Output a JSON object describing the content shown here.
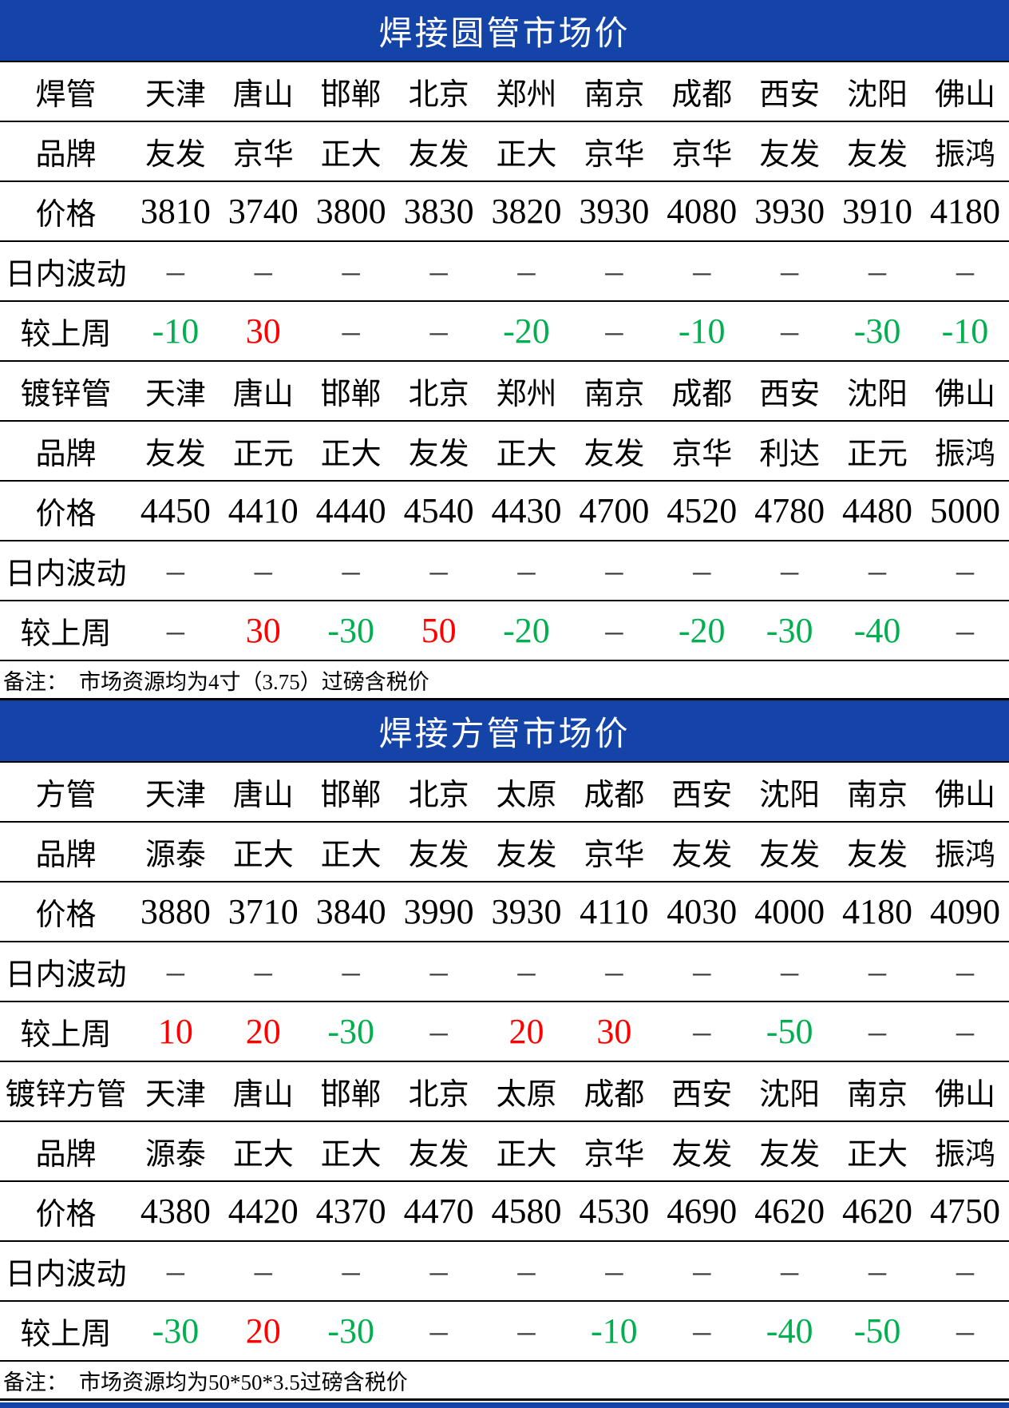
{
  "colors": {
    "up": "#ff0000",
    "down": "#00b050",
    "dash": "#3f3f3f",
    "banner_bg": "#1444a8",
    "banner_text": "#ffffff"
  },
  "sections": [
    {
      "title": "焊接圆管市场价",
      "note": {
        "label": "备注：",
        "text": "市场资源均为4寸（3.75）过磅含税价"
      },
      "rows": [
        {
          "label": "焊管",
          "cells": [
            {
              "v": "天津"
            },
            {
              "v": "唐山"
            },
            {
              "v": "邯郸"
            },
            {
              "v": "北京"
            },
            {
              "v": "郑州"
            },
            {
              "v": "南京"
            },
            {
              "v": "成都"
            },
            {
              "v": "西安"
            },
            {
              "v": "沈阳"
            },
            {
              "v": "佛山"
            }
          ]
        },
        {
          "label": "品牌",
          "cells": [
            {
              "v": "友发"
            },
            {
              "v": "京华"
            },
            {
              "v": "正大"
            },
            {
              "v": "友发"
            },
            {
              "v": "正大"
            },
            {
              "v": "京华"
            },
            {
              "v": "京华"
            },
            {
              "v": "友发"
            },
            {
              "v": "友发"
            },
            {
              "v": "振鸿"
            }
          ]
        },
        {
          "label": "价格",
          "cells": [
            {
              "v": "3810"
            },
            {
              "v": "3740"
            },
            {
              "v": "3800"
            },
            {
              "v": "3830"
            },
            {
              "v": "3820"
            },
            {
              "v": "3930"
            },
            {
              "v": "4080"
            },
            {
              "v": "3930"
            },
            {
              "v": "3910"
            },
            {
              "v": "4180"
            }
          ]
        },
        {
          "label": "日内波动",
          "cells": [
            {
              "v": "–",
              "c": "dash"
            },
            {
              "v": "–",
              "c": "dash"
            },
            {
              "v": "–",
              "c": "dash"
            },
            {
              "v": "–",
              "c": "dash"
            },
            {
              "v": "–",
              "c": "dash"
            },
            {
              "v": "–",
              "c": "dash"
            },
            {
              "v": "–",
              "c": "dash"
            },
            {
              "v": "–",
              "c": "dash"
            },
            {
              "v": "–",
              "c": "dash"
            },
            {
              "v": "–",
              "c": "dash"
            }
          ]
        },
        {
          "label": "较上周",
          "cells": [
            {
              "v": "-10",
              "c": "down"
            },
            {
              "v": "30",
              "c": "up"
            },
            {
              "v": "–",
              "c": "dash"
            },
            {
              "v": "–",
              "c": "dash"
            },
            {
              "v": "-20",
              "c": "down"
            },
            {
              "v": "–",
              "c": "dash"
            },
            {
              "v": "-10",
              "c": "down"
            },
            {
              "v": "–",
              "c": "dash"
            },
            {
              "v": "-30",
              "c": "down"
            },
            {
              "v": "-10",
              "c": "down"
            }
          ]
        },
        {
          "label": "镀锌管",
          "cells": [
            {
              "v": "天津"
            },
            {
              "v": "唐山"
            },
            {
              "v": "邯郸"
            },
            {
              "v": "北京"
            },
            {
              "v": "郑州"
            },
            {
              "v": "南京"
            },
            {
              "v": "成都"
            },
            {
              "v": "西安"
            },
            {
              "v": "沈阳"
            },
            {
              "v": "佛山"
            }
          ]
        },
        {
          "label": "品牌",
          "cells": [
            {
              "v": "友发"
            },
            {
              "v": "正元"
            },
            {
              "v": "正大"
            },
            {
              "v": "友发"
            },
            {
              "v": "正大"
            },
            {
              "v": "友发"
            },
            {
              "v": "京华"
            },
            {
              "v": "利达"
            },
            {
              "v": "正元"
            },
            {
              "v": "振鸿"
            }
          ]
        },
        {
          "label": "价格",
          "cells": [
            {
              "v": "4450"
            },
            {
              "v": "4410"
            },
            {
              "v": "4440"
            },
            {
              "v": "4540"
            },
            {
              "v": "4430"
            },
            {
              "v": "4700"
            },
            {
              "v": "4520"
            },
            {
              "v": "4780"
            },
            {
              "v": "4480"
            },
            {
              "v": "5000"
            }
          ]
        },
        {
          "label": "日内波动",
          "cells": [
            {
              "v": "–",
              "c": "dash"
            },
            {
              "v": "–",
              "c": "dash"
            },
            {
              "v": "–",
              "c": "dash"
            },
            {
              "v": "–",
              "c": "dash"
            },
            {
              "v": "–",
              "c": "dash"
            },
            {
              "v": "–",
              "c": "dash"
            },
            {
              "v": "–",
              "c": "dash"
            },
            {
              "v": "–",
              "c": "dash"
            },
            {
              "v": "–",
              "c": "dash"
            },
            {
              "v": "–",
              "c": "dash"
            }
          ]
        },
        {
          "label": "较上周",
          "cells": [
            {
              "v": "–",
              "c": "dash"
            },
            {
              "v": "30",
              "c": "up"
            },
            {
              "v": "-30",
              "c": "down"
            },
            {
              "v": "50",
              "c": "up"
            },
            {
              "v": "-20",
              "c": "down"
            },
            {
              "v": "–",
              "c": "dash"
            },
            {
              "v": "-20",
              "c": "down"
            },
            {
              "v": "-30",
              "c": "down"
            },
            {
              "v": "-40",
              "c": "down"
            },
            {
              "v": "–",
              "c": "dash"
            }
          ]
        }
      ]
    },
    {
      "title": "焊接方管市场价",
      "note": {
        "label": "备注：",
        "text": "市场资源均为50*50*3.5过磅含税价"
      },
      "rows": [
        {
          "label": "方管",
          "cells": [
            {
              "v": "天津"
            },
            {
              "v": "唐山"
            },
            {
              "v": "邯郸"
            },
            {
              "v": "北京"
            },
            {
              "v": "太原"
            },
            {
              "v": "成都"
            },
            {
              "v": "西安"
            },
            {
              "v": "沈阳"
            },
            {
              "v": "南京"
            },
            {
              "v": "佛山"
            }
          ]
        },
        {
          "label": "品牌",
          "cells": [
            {
              "v": "源泰"
            },
            {
              "v": "正大"
            },
            {
              "v": "正大"
            },
            {
              "v": "友发"
            },
            {
              "v": "友发"
            },
            {
              "v": "京华"
            },
            {
              "v": "友发"
            },
            {
              "v": "友发"
            },
            {
              "v": "友发"
            },
            {
              "v": "振鸿"
            }
          ]
        },
        {
          "label": "价格",
          "cells": [
            {
              "v": "3880"
            },
            {
              "v": "3710"
            },
            {
              "v": "3840"
            },
            {
              "v": "3990"
            },
            {
              "v": "3930"
            },
            {
              "v": "4110"
            },
            {
              "v": "4030"
            },
            {
              "v": "4000"
            },
            {
              "v": "4180"
            },
            {
              "v": "4090"
            }
          ]
        },
        {
          "label": "日内波动",
          "cells": [
            {
              "v": "–",
              "c": "dash"
            },
            {
              "v": "–",
              "c": "dash"
            },
            {
              "v": "–",
              "c": "dash"
            },
            {
              "v": "–",
              "c": "dash"
            },
            {
              "v": "–",
              "c": "dash"
            },
            {
              "v": "–",
              "c": "dash"
            },
            {
              "v": "–",
              "c": "dash"
            },
            {
              "v": "–",
              "c": "dash"
            },
            {
              "v": "–",
              "c": "dash"
            },
            {
              "v": "–",
              "c": "dash"
            }
          ]
        },
        {
          "label": "较上周",
          "cells": [
            {
              "v": "10",
              "c": "up"
            },
            {
              "v": "20",
              "c": "up"
            },
            {
              "v": "-30",
              "c": "down"
            },
            {
              "v": "–",
              "c": "dash"
            },
            {
              "v": "20",
              "c": "up"
            },
            {
              "v": "30",
              "c": "up"
            },
            {
              "v": "–",
              "c": "dash"
            },
            {
              "v": "-50",
              "c": "down"
            },
            {
              "v": "–",
              "c": "dash"
            },
            {
              "v": "–",
              "c": "dash"
            }
          ]
        },
        {
          "label": "镀锌方管",
          "cells": [
            {
              "v": "天津"
            },
            {
              "v": "唐山"
            },
            {
              "v": "邯郸"
            },
            {
              "v": "北京"
            },
            {
              "v": "太原"
            },
            {
              "v": "成都"
            },
            {
              "v": "西安"
            },
            {
              "v": "沈阳"
            },
            {
              "v": "南京"
            },
            {
              "v": "佛山"
            }
          ]
        },
        {
          "label": "品牌",
          "cells": [
            {
              "v": "源泰"
            },
            {
              "v": "正大"
            },
            {
              "v": "正大"
            },
            {
              "v": "友发"
            },
            {
              "v": "正大"
            },
            {
              "v": "京华"
            },
            {
              "v": "友发"
            },
            {
              "v": "友发"
            },
            {
              "v": "正大"
            },
            {
              "v": "振鸿"
            }
          ]
        },
        {
          "label": "价格",
          "cells": [
            {
              "v": "4380"
            },
            {
              "v": "4420"
            },
            {
              "v": "4370"
            },
            {
              "v": "4470"
            },
            {
              "v": "4580"
            },
            {
              "v": "4530"
            },
            {
              "v": "4690"
            },
            {
              "v": "4620"
            },
            {
              "v": "4620"
            },
            {
              "v": "4750"
            }
          ]
        },
        {
          "label": "日内波动",
          "cells": [
            {
              "v": "–",
              "c": "dash"
            },
            {
              "v": "–",
              "c": "dash"
            },
            {
              "v": "–",
              "c": "dash"
            },
            {
              "v": "–",
              "c": "dash"
            },
            {
              "v": "–",
              "c": "dash"
            },
            {
              "v": "–",
              "c": "dash"
            },
            {
              "v": "–",
              "c": "dash"
            },
            {
              "v": "–",
              "c": "dash"
            },
            {
              "v": "–",
              "c": "dash"
            },
            {
              "v": "–",
              "c": "dash"
            }
          ]
        },
        {
          "label": "较上周",
          "cells": [
            {
              "v": "-30",
              "c": "down"
            },
            {
              "v": "20",
              "c": "up"
            },
            {
              "v": "-30",
              "c": "down"
            },
            {
              "v": "–",
              "c": "dash"
            },
            {
              "v": "–",
              "c": "dash"
            },
            {
              "v": "-10",
              "c": "down"
            },
            {
              "v": "–",
              "c": "dash"
            },
            {
              "v": "-40",
              "c": "down"
            },
            {
              "v": "-50",
              "c": "down"
            },
            {
              "v": "–",
              "c": "dash"
            }
          ]
        }
      ]
    }
  ],
  "numeric_row_labels": [
    "价格",
    "日内波动",
    "较上周"
  ]
}
